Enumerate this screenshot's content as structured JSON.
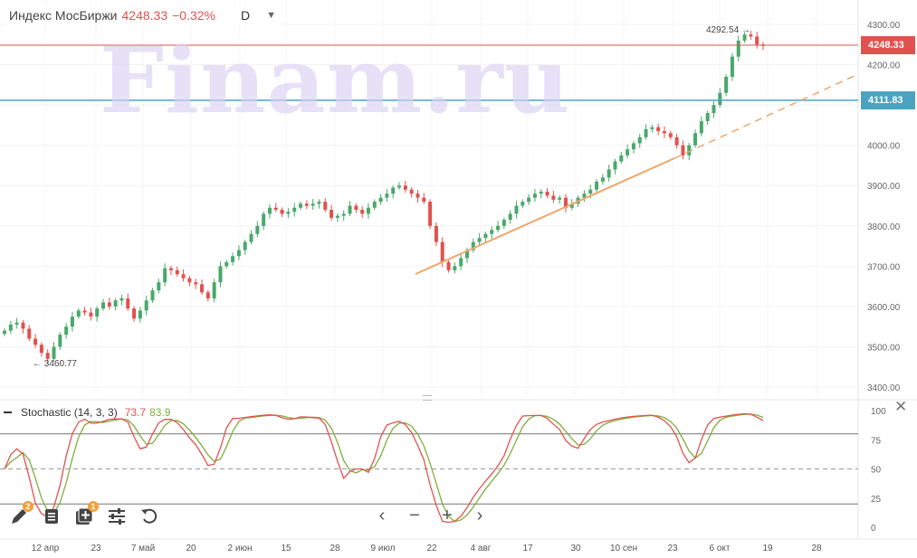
{
  "header": {
    "title": "Индекс МосБиржи",
    "price": "4248.33",
    "change": "−0.32%",
    "interval": "D",
    "dropdown_icon": "chevron-down-icon"
  },
  "watermark": "Finam.ru",
  "price_tags": {
    "last": "4248.33",
    "last_color": "#e0524e",
    "level": "4111.83",
    "level_color": "#4aa3c1"
  },
  "annotations": {
    "high": "4292.54",
    "low": "3460.77"
  },
  "stochastic": {
    "label": "Stochastic (14, 3, 3)",
    "k": "73.7",
    "d": "83.9",
    "k_color": "#e0524e",
    "d_color": "#7fae3c",
    "yticks": [
      "100",
      "75",
      "50",
      "25",
      "0"
    ]
  },
  "toolbar": {
    "draw_badge": "2",
    "layers_badge": "1"
  },
  "chart_data": {
    "type": "candlestick",
    "ylim": [
      3400,
      4310
    ],
    "yticks": [
      "4300.00",
      "4200.00",
      "4100.00",
      "4000.00",
      "3900.00",
      "3800.00",
      "3700.00",
      "3600.00",
      "3500.00",
      "3400.00"
    ],
    "xticks": [
      "12 апр",
      "23",
      "7 май",
      "20",
      "2 июн",
      "15",
      "28",
      "9 июл",
      "22",
      "4 авг",
      "17",
      "30",
      "10 сен",
      "23",
      "6 окт",
      "19",
      "28"
    ],
    "up_color": "#4aa86b",
    "down_color": "#e0524e",
    "closes": [
      3540,
      3555,
      3560,
      3545,
      3520,
      3505,
      3485,
      3470,
      3500,
      3530,
      3550,
      3575,
      3590,
      3585,
      3575,
      3595,
      3610,
      3600,
      3615,
      3620,
      3595,
      3570,
      3590,
      3615,
      3640,
      3660,
      3695,
      3690,
      3680,
      3670,
      3660,
      3655,
      3635,
      3620,
      3660,
      3700,
      3710,
      3725,
      3740,
      3760,
      3780,
      3800,
      3830,
      3845,
      3840,
      3830,
      3835,
      3845,
      3855,
      3850,
      3855,
      3860,
      3840,
      3820,
      3825,
      3830,
      3850,
      3840,
      3830,
      3845,
      3860,
      3870,
      3880,
      3895,
      3900,
      3890,
      3880,
      3870,
      3860,
      3800,
      3760,
      3710,
      3690,
      3700,
      3720,
      3740,
      3760,
      3770,
      3780,
      3790,
      3800,
      3815,
      3830,
      3850,
      3860,
      3870,
      3880,
      3885,
      3875,
      3865,
      3870,
      3845,
      3855,
      3870,
      3880,
      3890,
      3910,
      3920,
      3940,
      3960,
      3975,
      3990,
      4005,
      4020,
      4040,
      4045,
      4035,
      4030,
      4020,
      4000,
      3975,
      4000,
      4030,
      4060,
      4080,
      4100,
      4130,
      4170,
      4220,
      4260,
      4275,
      4270,
      4250,
      4248
    ]
  }
}
